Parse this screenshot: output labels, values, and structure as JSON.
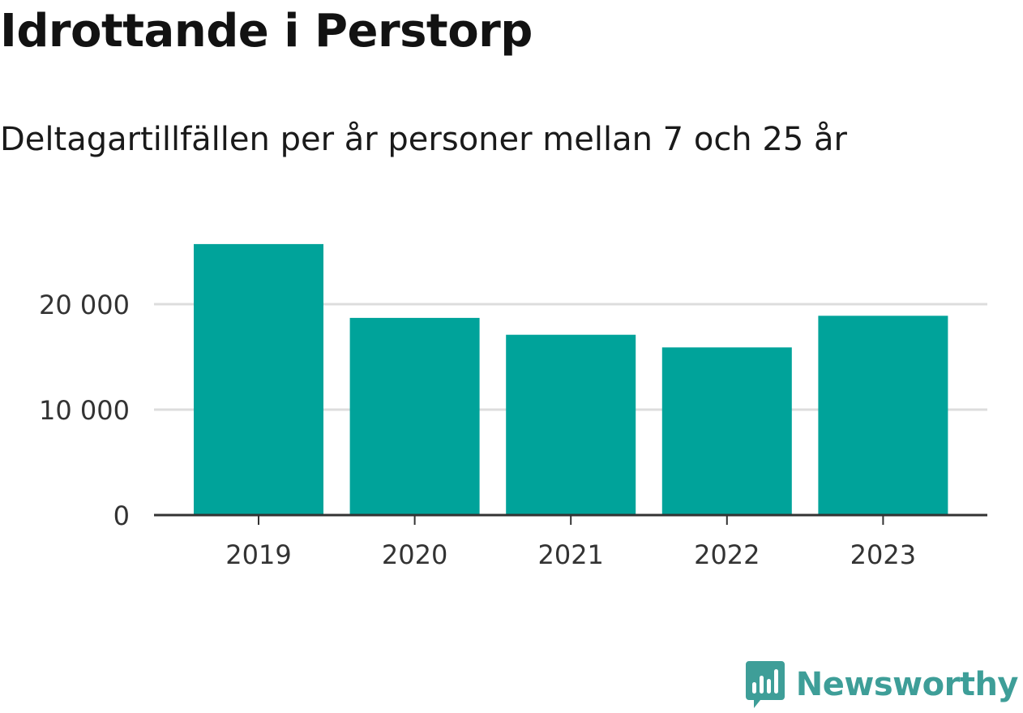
{
  "header": {
    "title": "Idrottande i Perstorp",
    "subtitle": "Deltagartillfällen per år personer mellan 7 och 25 år"
  },
  "brand": {
    "name": "Newsworthy",
    "color": "#3e9e98"
  },
  "chart_data": {
    "type": "bar",
    "title": "Idrottande i Perstorp",
    "subtitle": "Deltagartillfällen per år personer mellan 7 och 25 år",
    "xlabel": "",
    "ylabel": "",
    "categories": [
      "2019",
      "2020",
      "2021",
      "2022",
      "2023"
    ],
    "values": [
      25700,
      18700,
      17100,
      15900,
      18900
    ],
    "ylim": [
      0,
      27000
    ],
    "yticks": [
      0,
      10000,
      20000
    ],
    "ytick_labels": [
      "0",
      "10 000",
      "20 000"
    ],
    "grid": true,
    "bar_color": "#00a39a",
    "grid_color": "#dddddd",
    "axis_color": "#333333"
  }
}
